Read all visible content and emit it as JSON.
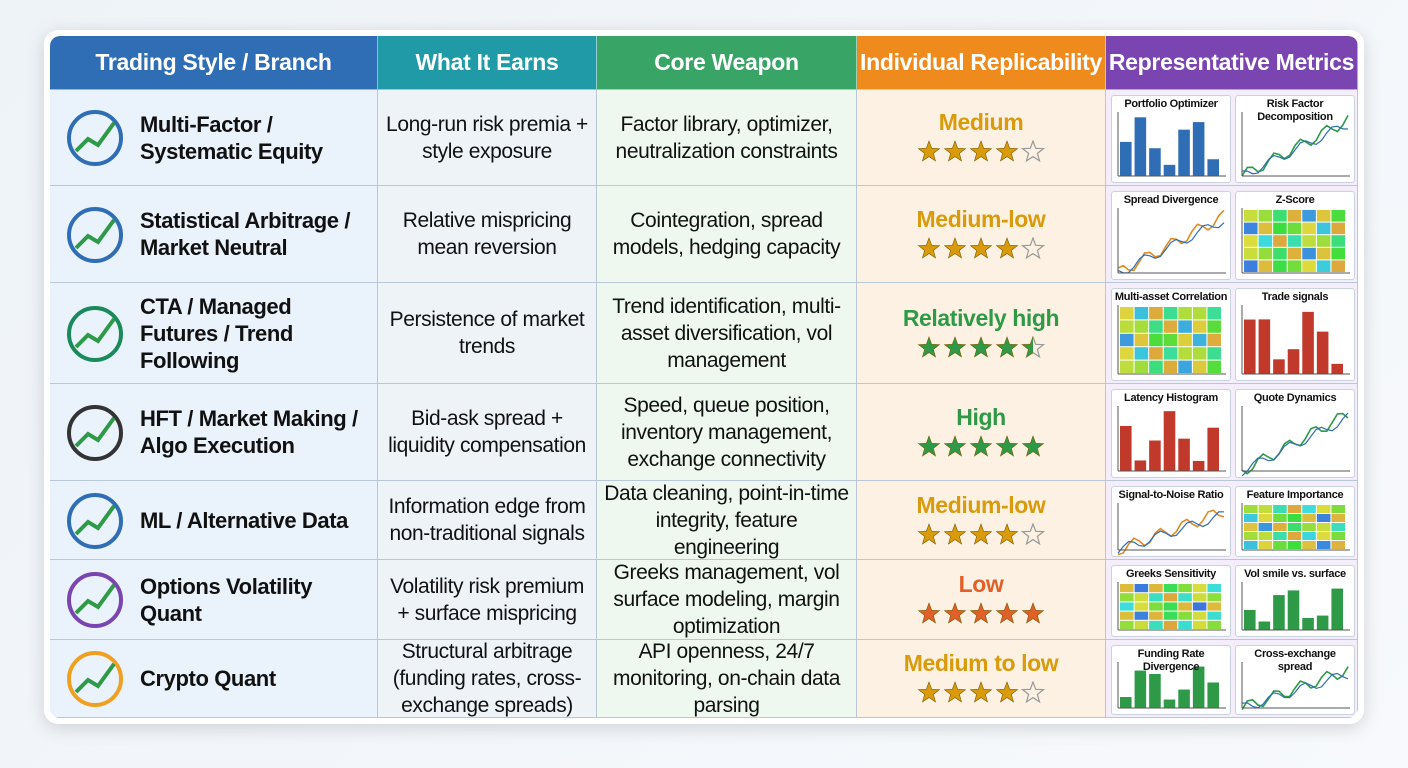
{
  "table": {
    "columns": [
      "Trading Style / Branch",
      "What It Earns",
      "Core Weapon",
      "Individual Replicability",
      "Representative Metrics"
    ],
    "rows": [
      {
        "style": "Multi-Factor / Systematic Equity",
        "earns": "Long-run risk premia + style exposure",
        "weapon": "Factor library, optimizer, neutralization constraints",
        "replicability": {
          "label": "Medium",
          "stars": 4,
          "color": "#d99a0b"
        },
        "metrics": [
          "Portfolio Optimizer",
          "Risk Factor Decomposition"
        ]
      },
      {
        "style": "Statistical Arbitrage / Market Neutral",
        "earns": "Relative mispricing mean reversion",
        "weapon": "Cointegration, spread models, hedging capacity",
        "replicability": {
          "label": "Medium-low",
          "stars": 4,
          "color": "#d99a0b"
        },
        "metrics": [
          "Spread Divergence",
          "Z-Score"
        ]
      },
      {
        "style": "CTA / Managed Futures / Trend Following",
        "earns": "Persistence of market trends",
        "weapon": "Trend identification, multi-asset diversification, vol management",
        "replicability": {
          "label": "Relatively high",
          "stars": 4.5,
          "color": "#2e9a48"
        },
        "metrics": [
          "Multi-asset Correlation",
          "Trade signals"
        ]
      },
      {
        "style": "HFT / Market Making / Algo Execution",
        "earns": "Bid-ask spread + liquidity compensation",
        "weapon": "Speed, queue position, inventory management, exchange connectivity",
        "replicability": {
          "label": "High",
          "stars": 5,
          "color": "#2e9a48"
        },
        "metrics": [
          "Latency Histogram",
          "Quote Dynamics"
        ]
      },
      {
        "style": "ML / Alternative Data",
        "earns": "Information edge from non-traditional signals",
        "weapon": "Data cleaning, point-in-time integrity, feature engineering",
        "replicability": {
          "label": "Medium-low",
          "stars": 4,
          "color": "#d99a0b"
        },
        "metrics": [
          "Signal-to-Noise Ratio",
          "Feature Importance"
        ]
      },
      {
        "style": "Options Volatility Quant",
        "earns": "Volatility risk premium + surface mispricing",
        "weapon": "Greeks management, vol surface modeling, margin optimization",
        "replicability": {
          "label": "Low",
          "stars": 5,
          "color": "#e0602a"
        },
        "metrics": [
          "Greeks Sensitivity",
          "Vol smile vs. surface"
        ]
      },
      {
        "style": "Crypto Quant",
        "earns": "Structural arbitrage (funding rates, cross-exchange spreads)",
        "weapon": "API openness, 24/7 monitoring, on-chain data parsing",
        "replicability": {
          "label": "Medium to low",
          "stars": 4,
          "color": "#d99a0b"
        },
        "metrics": [
          "Funding Rate Divergence",
          "Cross-exchange spread"
        ]
      }
    ]
  }
}
